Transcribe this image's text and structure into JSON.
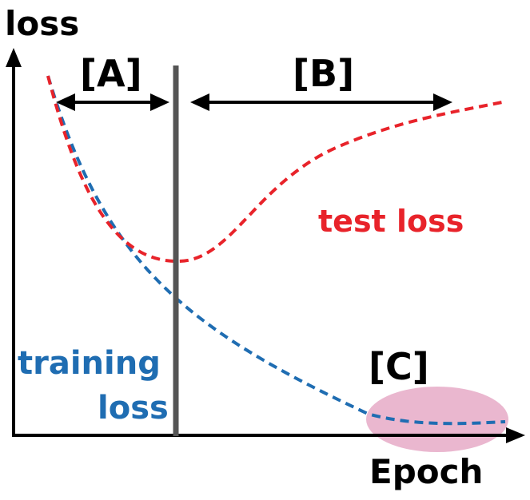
{
  "axes": {
    "y_label": "loss",
    "x_label": "Epoch"
  },
  "regions": {
    "a": "[A]",
    "b": "[B]",
    "c": "[C]"
  },
  "curves": {
    "test": "test loss",
    "training_line1": "training",
    "training_line2": "loss"
  },
  "colors": {
    "test": "#e8232a",
    "training": "#1f6db2",
    "divider": "#555555",
    "highlight": "#eab7cf",
    "axis": "#000000"
  }
}
